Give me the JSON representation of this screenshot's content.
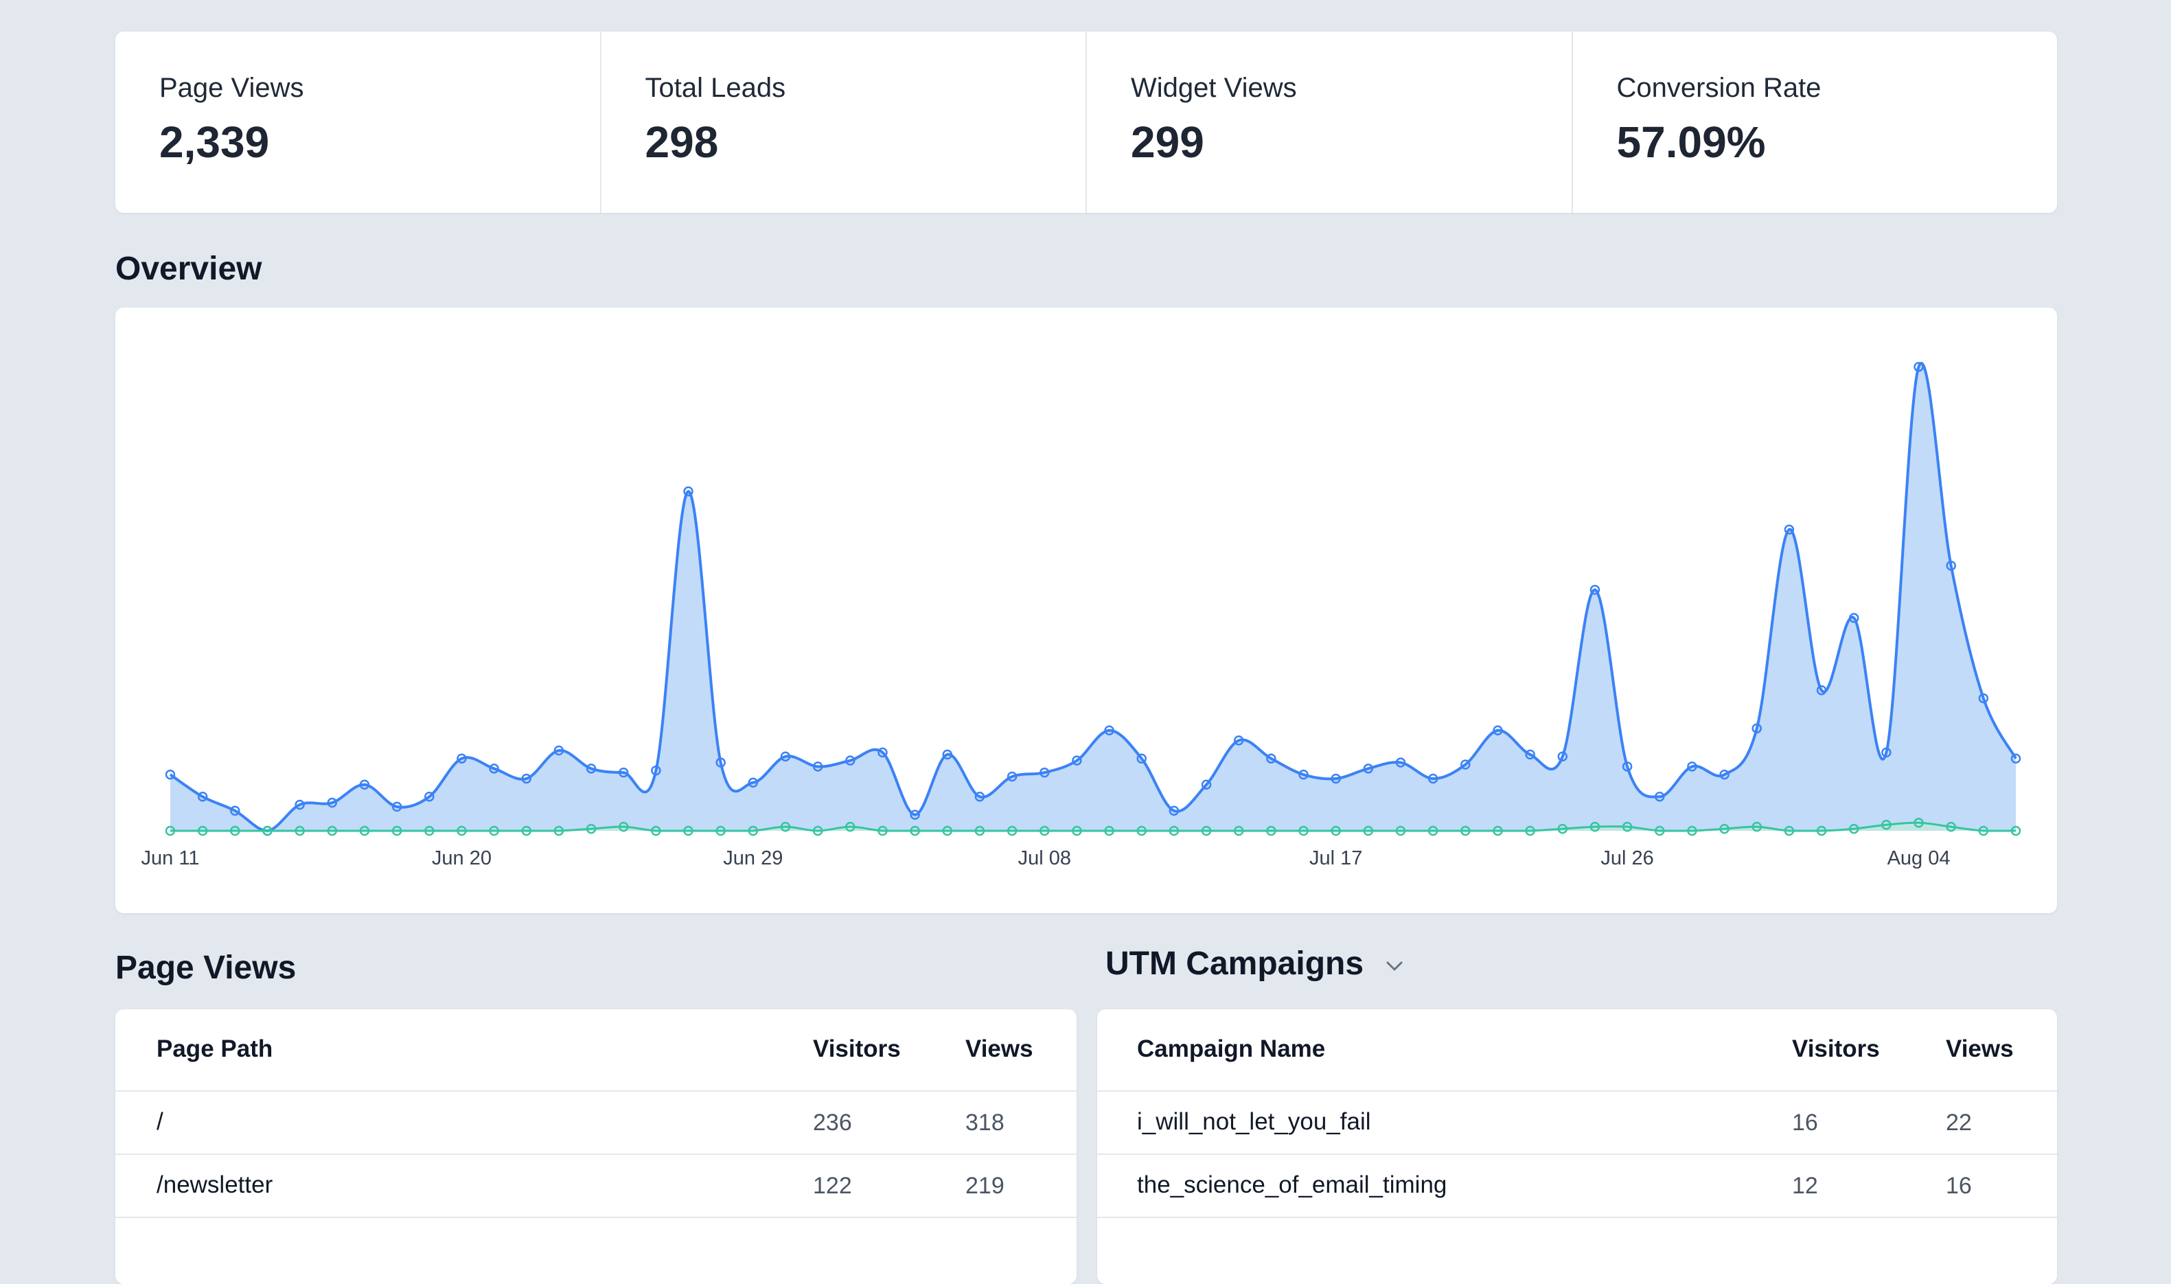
{
  "stats": [
    {
      "label": "Page Views",
      "value": "2,339"
    },
    {
      "label": "Total Leads",
      "value": "298"
    },
    {
      "label": "Widget Views",
      "value": "299"
    },
    {
      "label": "Conversion Rate",
      "value": "57.09%"
    }
  ],
  "overview": {
    "title": "Overview"
  },
  "chart_data": {
    "type": "area",
    "title": "",
    "xlabel": "",
    "ylabel": "",
    "grid": false,
    "legend": "none",
    "x": [
      "Jun 11",
      "Jun 12",
      "Jun 13",
      "Jun 14",
      "Jun 15",
      "Jun 16",
      "Jun 17",
      "Jun 18",
      "Jun 19",
      "Jun 20",
      "Jun 21",
      "Jun 22",
      "Jun 23",
      "Jun 24",
      "Jun 25",
      "Jun 26",
      "Jun 27",
      "Jun 28",
      "Jun 29",
      "Jun 30",
      "Jul 01",
      "Jul 02",
      "Jul 03",
      "Jul 04",
      "Jul 05",
      "Jul 06",
      "Jul 07",
      "Jul 08",
      "Jul 09",
      "Jul 10",
      "Jul 11",
      "Jul 12",
      "Jul 13",
      "Jul 14",
      "Jul 15",
      "Jul 16",
      "Jul 17",
      "Jul 18",
      "Jul 19",
      "Jul 20",
      "Jul 21",
      "Jul 22",
      "Jul 23",
      "Jul 24",
      "Jul 25",
      "Jul 26",
      "Jul 27",
      "Jul 28",
      "Jul 29",
      "Jul 30",
      "Jul 31",
      "Aug 01",
      "Aug 02",
      "Aug 03",
      "Aug 04",
      "Aug 05",
      "Aug 06",
      "Aug 07"
    ],
    "tick_labels": [
      "Jun 11",
      "Jun 20",
      "Jun 29",
      "Jul 08",
      "Jul 17",
      "Jul 26",
      "Aug 04"
    ],
    "series": [
      {
        "color": "#3b82f6",
        "fill": "#c2dbf8",
        "values": [
          28,
          17,
          10,
          0,
          13,
          14,
          23,
          12,
          17,
          36,
          31,
          26,
          40,
          31,
          29,
          30,
          169,
          34,
          24,
          37,
          32,
          35,
          39,
          8,
          38,
          17,
          27,
          29,
          35,
          50,
          36,
          10,
          23,
          45,
          36,
          28,
          26,
          31,
          34,
          26,
          33,
          50,
          38,
          37,
          120,
          32,
          17,
          32,
          28,
          51,
          150,
          70,
          106,
          39,
          231,
          132,
          66,
          36
        ]
      },
      {
        "color": "#34c6a0",
        "fill": "#bfe8de",
        "values": [
          0,
          0,
          0,
          0,
          0,
          0,
          0,
          0,
          0,
          0,
          0,
          0,
          0,
          1,
          2,
          0,
          0,
          0,
          0,
          2,
          0,
          2,
          0,
          0,
          0,
          0,
          0,
          0,
          0,
          0,
          0,
          0,
          0,
          0,
          0,
          0,
          0,
          0,
          0,
          0,
          0,
          0,
          0,
          1,
          2,
          2,
          0,
          0,
          1,
          2,
          0,
          0,
          1,
          3,
          4,
          2,
          0,
          0
        ]
      }
    ],
    "ylim": [
      0,
      240
    ]
  },
  "page_views": {
    "title": "Page Views",
    "columns": [
      "Page Path",
      "Visitors",
      "Views"
    ],
    "rows": [
      {
        "path": "/",
        "visitors": "236",
        "views": "318"
      },
      {
        "path": "/newsletter",
        "visitors": "122",
        "views": "219"
      }
    ]
  },
  "utm": {
    "title": "UTM Campaigns",
    "columns": [
      "Campaign Name",
      "Visitors",
      "Views"
    ],
    "rows": [
      {
        "name": "i_will_not_let_you_fail",
        "visitors": "16",
        "views": "22"
      },
      {
        "name": "the_science_of_email_timing",
        "visitors": "12",
        "views": "16"
      }
    ]
  },
  "icons": {
    "dropdown": "chevron-down-icon"
  }
}
